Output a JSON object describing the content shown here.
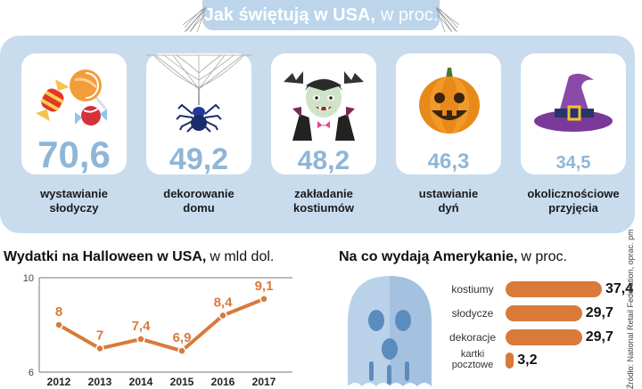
{
  "header": {
    "title_bold": "Jak świętują w USA,",
    "title_suffix": "w proc."
  },
  "celebrations": [
    {
      "value": "70,6",
      "label_line1": "wystawianie",
      "label_line2": "słodyczy",
      "icon": "candy-icon"
    },
    {
      "value": "49,2",
      "label_line1": "dekorowanie",
      "label_line2": "domu",
      "icon": "spider-icon"
    },
    {
      "value": "48,2",
      "label_line1": "zakładanie",
      "label_line2": "kostiumów",
      "icon": "vampire-icon"
    },
    {
      "value": "46,3",
      "label_line1": "ustawianie",
      "label_line2": "dyń",
      "icon": "pumpkin-icon"
    },
    {
      "value": "34,5",
      "label_line1": "okolicznościowe",
      "label_line2": "przyjęcia",
      "icon": "witch-hat-icon"
    }
  ],
  "spending": {
    "title_bold": "Wydatki na Halloween w USA,",
    "title_suffix": "w mld dol."
  },
  "breakdown": {
    "title_bold": "Na co wydają Amerykanie,",
    "title_suffix": "w proc.",
    "items": [
      {
        "label_line1": "kostiumy",
        "label_line2": "",
        "value": 37.4,
        "value_text": "37,4"
      },
      {
        "label_line1": "słodycze",
        "label_line2": "",
        "value": 29.7,
        "value_text": "29,7"
      },
      {
        "label_line1": "dekoracje",
        "label_line2": "",
        "value": 29.7,
        "value_text": "29,7"
      },
      {
        "label_line1": "kartki",
        "label_line2": "pocztowe",
        "value": 3.2,
        "value_text": "3,2"
      }
    ]
  },
  "source": "Źródło: National Retail Federation, oprac. pm",
  "colors": {
    "accent": "#d97a3b",
    "panel": "#c8dcee",
    "number": "#8fb6d8",
    "ghost": "#b9d2ea"
  },
  "chart_data": {
    "type": "line",
    "title": "Wydatki na Halloween w USA, w mld dol.",
    "categories": [
      "2012",
      "2013",
      "2014",
      "2015",
      "2016",
      "2017"
    ],
    "values": [
      8,
      7,
      7.4,
      6.9,
      8.4,
      9.1
    ],
    "value_labels": [
      "8",
      "7",
      "7,4",
      "6,9",
      "8,4",
      "9,1"
    ],
    "ylim": [
      6,
      10
    ],
    "yticks": [
      "6",
      "10"
    ],
    "grid": false
  }
}
